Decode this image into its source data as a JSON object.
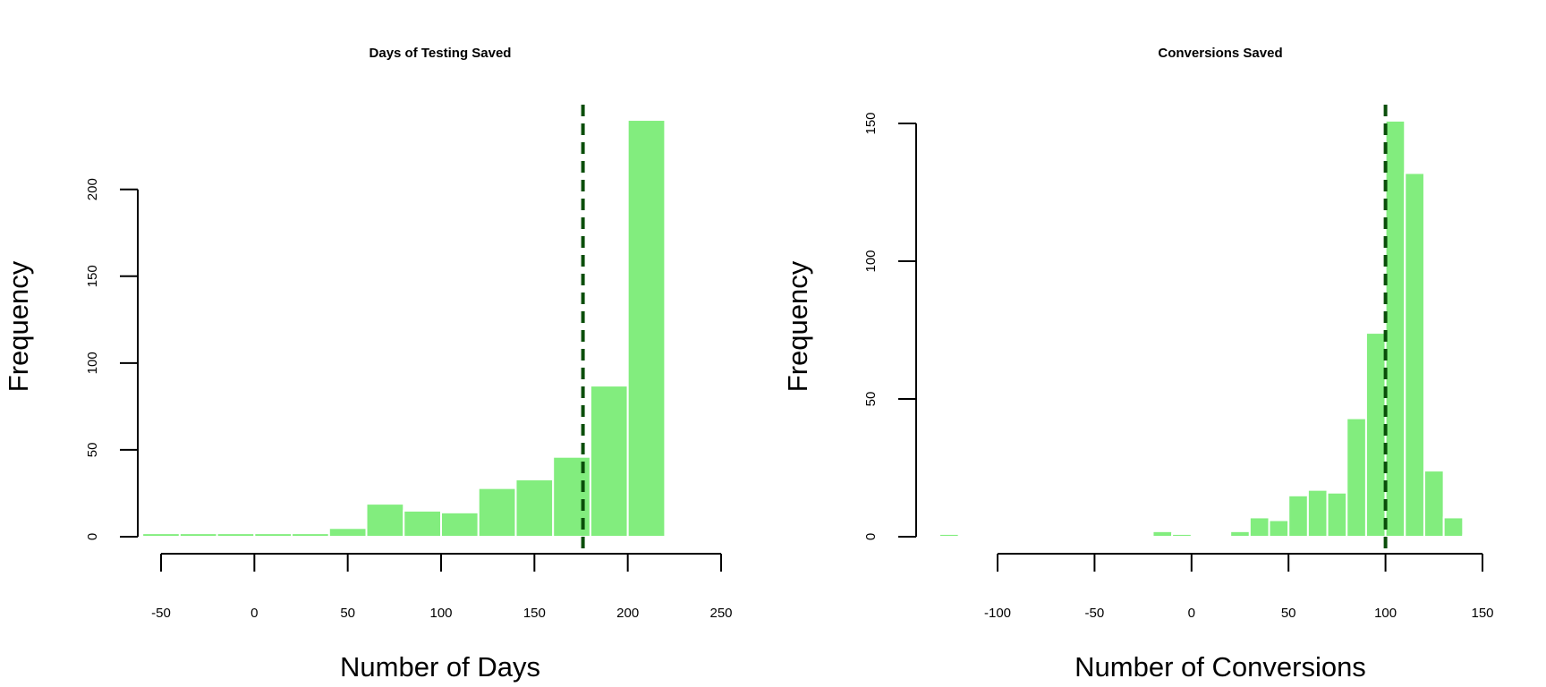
{
  "colors": {
    "bar": "#82ED7E",
    "bar_border": "#FFFFFF",
    "mean_line": "#0A4E0A",
    "axis": "#000000"
  },
  "chart_data": [
    {
      "type": "bar",
      "title": "Days of Testing Saved",
      "xlabel": "Number of Days",
      "ylabel": "Frequency",
      "xlim": [
        -60,
        250
      ],
      "ylim": [
        0,
        200
      ],
      "x_ticks": [
        -50,
        0,
        50,
        100,
        150,
        200,
        250
      ],
      "y_ticks": [
        0,
        50,
        100,
        150,
        200
      ],
      "bin_edges": [
        -60,
        -40,
        -20,
        0,
        20,
        40,
        60,
        80,
        100,
        120,
        140,
        160,
        180,
        200,
        220
      ],
      "values": [
        2,
        2,
        2,
        2,
        2,
        5,
        19,
        15,
        14,
        28,
        33,
        46,
        87,
        240
      ],
      "reference_line": {
        "x": 176,
        "style": "dashed"
      },
      "grid": false,
      "legend": "none"
    },
    {
      "type": "bar",
      "title": "Conversions Saved",
      "xlabel": "Number of Conversions",
      "ylabel": "Frequency",
      "xlim": [
        -130,
        160
      ],
      "ylim": [
        0,
        150
      ],
      "x_ticks": [
        -100,
        -50,
        0,
        50,
        100,
        150
      ],
      "y_ticks": [
        0,
        50,
        100,
        150
      ],
      "bin_edges": [
        -130,
        -120,
        -110,
        -100,
        -90,
        -80,
        -70,
        -60,
        -50,
        -40,
        -30,
        -20,
        -10,
        0,
        10,
        20,
        30,
        40,
        50,
        60,
        70,
        80,
        90,
        100,
        110,
        120,
        130,
        140,
        150,
        160
      ],
      "values": [
        1,
        0,
        0,
        0,
        0,
        0,
        0,
        0,
        0,
        0,
        0,
        2,
        1,
        0,
        0,
        2,
        7,
        6,
        15,
        17,
        16,
        43,
        74,
        151,
        132,
        24,
        7,
        0.5,
        0.5
      ],
      "reference_line": {
        "x": 100,
        "style": "dashed"
      },
      "grid": false,
      "legend": "none"
    }
  ]
}
